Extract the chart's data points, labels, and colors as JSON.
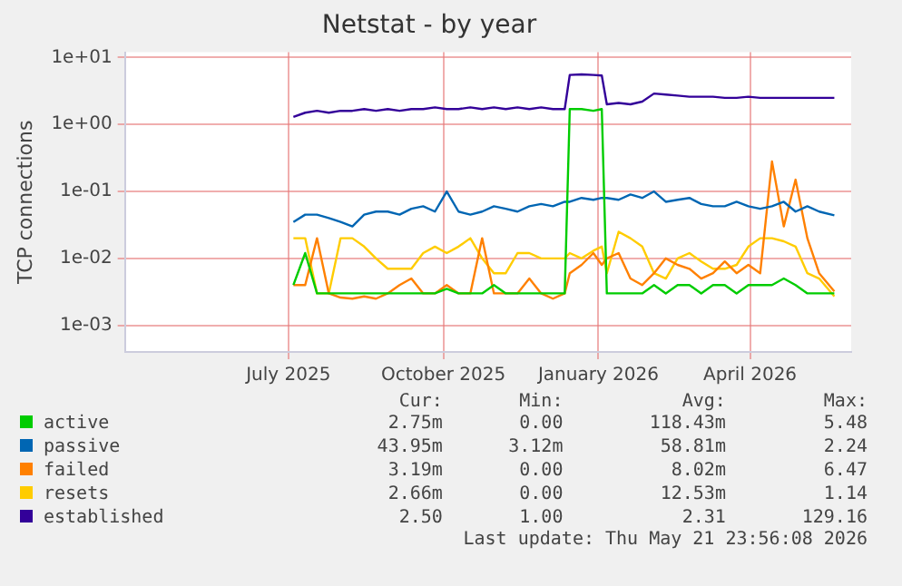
{
  "chart_data": {
    "type": "line",
    "title": "Netstat - by year",
    "ylabel": "TCP connections",
    "log": "y",
    "grid": true,
    "legend": "bottom",
    "marker": "none",
    "line_style": "solid",
    "xlim": [
      "2025-03-26",
      "2026-05-31"
    ],
    "xticks": [
      {
        "value": "2025-07-01",
        "label": "July 2025"
      },
      {
        "value": "2025-10-01",
        "label": "October 2025"
      },
      {
        "value": "2026-01-01",
        "label": "January 2026"
      },
      {
        "value": "2026-04-01",
        "label": "April 2026"
      }
    ],
    "ylim": [
      0.0004,
      12
    ],
    "yticks": [
      {
        "value": 0.001,
        "label": "1e-03"
      },
      {
        "value": 0.01,
        "label": "1e-02"
      },
      {
        "value": 0.1,
        "label": "1e-01"
      },
      {
        "value": 1,
        "label": "1e+00"
      },
      {
        "value": 10,
        "label": "1e+01"
      }
    ],
    "x": [
      "2025-07-04",
      "2025-07-11",
      "2025-07-18",
      "2025-07-25",
      "2025-08-01",
      "2025-08-08",
      "2025-08-15",
      "2025-08-22",
      "2025-08-29",
      "2025-09-05",
      "2025-09-12",
      "2025-09-19",
      "2025-09-26",
      "2025-10-03",
      "2025-10-10",
      "2025-10-17",
      "2025-10-24",
      "2025-10-31",
      "2025-11-07",
      "2025-11-14",
      "2025-11-21",
      "2025-11-28",
      "2025-12-05",
      "2025-12-12",
      "2025-12-15",
      "2025-12-22",
      "2025-12-29",
      "2026-01-03",
      "2026-01-06",
      "2026-01-13",
      "2026-01-20",
      "2026-01-27",
      "2026-02-03",
      "2026-02-10",
      "2026-02-17",
      "2026-02-24",
      "2026-03-03",
      "2026-03-10",
      "2026-03-17",
      "2026-03-24",
      "2026-03-31",
      "2026-04-07",
      "2026-04-14",
      "2026-04-21",
      "2026-04-28",
      "2026-05-05",
      "2026-05-12",
      "2026-05-21"
    ],
    "series": [
      {
        "name": "active",
        "color": "#00cc00",
        "values": [
          0.004,
          0.012,
          0.003,
          0.003,
          0.003,
          0.003,
          0.003,
          0.003,
          0.003,
          0.003,
          0.003,
          0.003,
          0.003,
          0.0035,
          0.003,
          0.003,
          0.003,
          0.004,
          0.003,
          0.003,
          0.003,
          0.003,
          0.003,
          0.003,
          1.7,
          1.7,
          1.6,
          1.7,
          0.003,
          0.003,
          0.003,
          0.003,
          0.004,
          0.003,
          0.004,
          0.004,
          0.003,
          0.004,
          0.004,
          0.003,
          0.004,
          0.004,
          0.004,
          0.005,
          0.004,
          0.003,
          0.003,
          0.003
        ]
      },
      {
        "name": "passive",
        "color": "#0066b3",
        "values": [
          0.035,
          0.045,
          0.045,
          0.04,
          0.035,
          0.03,
          0.045,
          0.05,
          0.05,
          0.045,
          0.055,
          0.06,
          0.05,
          0.1,
          0.05,
          0.045,
          0.05,
          0.06,
          0.055,
          0.05,
          0.06,
          0.065,
          0.06,
          0.07,
          0.07,
          0.08,
          0.075,
          0.08,
          0.08,
          0.075,
          0.09,
          0.08,
          0.1,
          0.07,
          0.075,
          0.08,
          0.065,
          0.06,
          0.06,
          0.07,
          0.06,
          0.055,
          0.06,
          0.07,
          0.05,
          0.06,
          0.05,
          0.044
        ]
      },
      {
        "name": "failed",
        "color": "#ff8000",
        "values": [
          0.004,
          0.004,
          0.02,
          0.003,
          0.0026,
          0.0025,
          0.0027,
          0.0025,
          0.003,
          0.004,
          0.005,
          0.003,
          0.003,
          0.004,
          0.003,
          0.003,
          0.02,
          0.003,
          0.003,
          0.003,
          0.005,
          0.003,
          0.0025,
          0.003,
          0.006,
          0.008,
          0.012,
          0.008,
          0.01,
          0.012,
          0.005,
          0.004,
          0.006,
          0.01,
          0.008,
          0.007,
          0.005,
          0.006,
          0.009,
          0.006,
          0.008,
          0.006,
          0.28,
          0.03,
          0.15,
          0.02,
          0.006,
          0.0032
        ]
      },
      {
        "name": "resets",
        "color": "#ffcc00",
        "values": [
          0.02,
          0.02,
          0.003,
          0.003,
          0.02,
          0.02,
          0.015,
          0.01,
          0.007,
          0.007,
          0.007,
          0.012,
          0.015,
          0.012,
          0.015,
          0.02,
          0.01,
          0.006,
          0.006,
          0.012,
          0.012,
          0.01,
          0.01,
          0.01,
          0.012,
          0.01,
          0.013,
          0.015,
          0.006,
          0.025,
          0.02,
          0.015,
          0.006,
          0.005,
          0.01,
          0.012,
          0.009,
          0.007,
          0.007,
          0.008,
          0.015,
          0.02,
          0.02,
          0.018,
          0.015,
          0.006,
          0.005,
          0.0027
        ]
      },
      {
        "name": "established",
        "color": "#330099",
        "values": [
          1.3,
          1.5,
          1.6,
          1.5,
          1.6,
          1.6,
          1.7,
          1.6,
          1.7,
          1.6,
          1.7,
          1.7,
          1.8,
          1.7,
          1.7,
          1.8,
          1.7,
          1.8,
          1.7,
          1.8,
          1.7,
          1.8,
          1.7,
          1.7,
          5.5,
          5.6,
          5.5,
          5.4,
          2.0,
          2.1,
          2.0,
          2.2,
          2.9,
          2.8,
          2.7,
          2.6,
          2.6,
          2.6,
          2.5,
          2.5,
          2.6,
          2.5,
          2.5,
          2.5,
          2.5,
          2.5,
          2.5,
          2.5
        ]
      }
    ],
    "annotations": [
      "Cur:",
      "Min:",
      "Avg:",
      "Max:",
      "2.75m",
      "0.00",
      "118.43m",
      "5.48",
      "43.95m",
      "3.12m",
      "58.81m",
      "2.24",
      "3.19m",
      "0.00",
      "8.02m",
      "6.47",
      "2.66m",
      "0.00",
      "12.53m",
      "1.14",
      "2.50",
      "1.00",
      "2.31",
      "129.16",
      "Last update: Thu May 21 23:56:08 2026"
    ]
  }
}
